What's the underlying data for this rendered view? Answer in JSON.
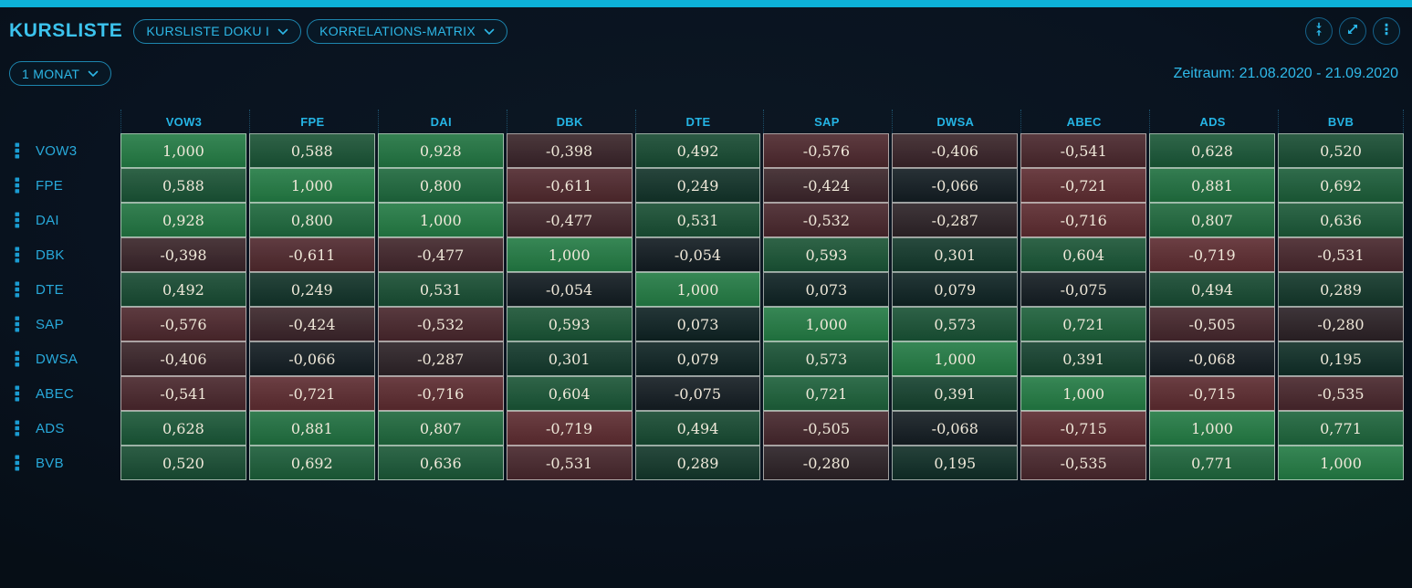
{
  "header": {
    "title": "KURSLISTE",
    "dropdowns": [
      {
        "label": "KURSLISTE DOKU I"
      },
      {
        "label": "KORRELATIONS-MATRIX"
      }
    ],
    "actions": [
      {
        "name": "collapse-vertical"
      },
      {
        "name": "expand-diagonal"
      },
      {
        "name": "more-menu"
      }
    ]
  },
  "toolbar": {
    "period_label": "1 MONAT",
    "zeitraum_label": "Zeitraum: 21.08.2020 - 21.09.2020"
  },
  "chart_data": {
    "type": "heatmap",
    "title": "Korrelations-Matrix",
    "period": "1 MONAT",
    "date_range": "21.08.2020 - 21.09.2020",
    "categories": [
      "VOW3",
      "FPE",
      "DAI",
      "DBK",
      "DTE",
      "SAP",
      "DWSA",
      "ABEC",
      "ADS",
      "BVB"
    ],
    "rows": [
      [
        1.0,
        0.588,
        0.928,
        -0.398,
        0.492,
        -0.576,
        -0.406,
        -0.541,
        0.628,
        0.52
      ],
      [
        0.588,
        1.0,
        0.8,
        -0.611,
        0.249,
        -0.424,
        -0.066,
        -0.721,
        0.881,
        0.692
      ],
      [
        0.928,
        0.8,
        1.0,
        -0.477,
        0.531,
        -0.532,
        -0.287,
        -0.716,
        0.807,
        0.636
      ],
      [
        -0.398,
        -0.611,
        -0.477,
        1.0,
        -0.054,
        0.593,
        0.301,
        0.604,
        -0.719,
        -0.531
      ],
      [
        0.492,
        0.249,
        0.531,
        -0.054,
        1.0,
        0.073,
        0.079,
        -0.075,
        0.494,
        0.289
      ],
      [
        -0.576,
        -0.424,
        -0.532,
        0.593,
        0.073,
        1.0,
        0.573,
        0.721,
        -0.505,
        -0.28
      ],
      [
        -0.406,
        -0.066,
        -0.287,
        0.301,
        0.079,
        0.573,
        1.0,
        0.391,
        -0.068,
        0.195
      ],
      [
        -0.541,
        -0.721,
        -0.716,
        0.604,
        -0.075,
        0.721,
        0.391,
        1.0,
        -0.715,
        -0.535
      ],
      [
        0.628,
        0.881,
        0.807,
        -0.719,
        0.494,
        -0.505,
        -0.068,
        -0.715,
        1.0,
        0.771
      ],
      [
        0.52,
        0.692,
        0.636,
        -0.531,
        0.289,
        -0.28,
        0.195,
        -0.535,
        0.771,
        1.0
      ]
    ],
    "value_range": [
      -1,
      1
    ],
    "decimal_separator": ",",
    "decimals": 3,
    "legend": "none"
  },
  "colors": {
    "accent_bar": "#0db1d8",
    "cyan_bright": "#3cc3ed",
    "cyan_text": "#2db7e6",
    "pill_border": "#1d85ae",
    "background": "#091320",
    "cell_text": "#efe8d9",
    "cell_border": "rgba(232,236,232,0.62)",
    "positive_max": "#237b44",
    "negative_max": "#7c3237",
    "zero": "#0c1b20"
  }
}
